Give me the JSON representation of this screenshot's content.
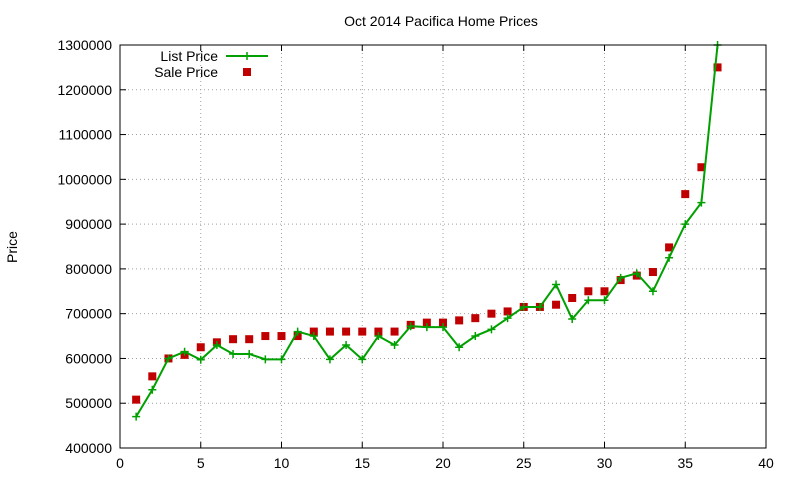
{
  "chart_data": {
    "type": "line",
    "title": "Oct 2014 Pacifica Home Prices",
    "xlabel": "",
    "ylabel": "Price",
    "xlim": [
      0,
      40
    ],
    "ylim": [
      400000,
      1300000
    ],
    "xticks": [
      0,
      5,
      10,
      15,
      20,
      25,
      30,
      35,
      40
    ],
    "yticks": [
      400000,
      500000,
      600000,
      700000,
      800000,
      900000,
      1000000,
      1100000,
      1200000,
      1300000
    ],
    "grid": true,
    "legend_position": "top-left",
    "series": [
      {
        "name": "List Price",
        "style": "line-with-plus-markers",
        "color": "#00a000",
        "x": [
          1,
          2,
          3,
          4,
          5,
          6,
          7,
          8,
          9,
          10,
          11,
          12,
          13,
          14,
          15,
          16,
          17,
          18,
          19,
          20,
          21,
          22,
          23,
          24,
          25,
          26,
          27,
          28,
          29,
          30,
          31,
          32,
          33,
          34,
          35,
          36,
          37
        ],
        "y": [
          470000,
          530000,
          600000,
          615000,
          597000,
          630000,
          610000,
          610000,
          598000,
          598000,
          660000,
          650000,
          598000,
          630000,
          598000,
          650000,
          630000,
          672000,
          670000,
          670000,
          625000,
          650000,
          665000,
          690000,
          715000,
          715000,
          765000,
          688000,
          730000,
          730000,
          780000,
          790000,
          750000,
          825000,
          900000,
          948000,
          1300000
        ]
      },
      {
        "name": "Sale Price",
        "style": "square-markers",
        "color": "#c00000",
        "x": [
          1,
          2,
          3,
          4,
          5,
          6,
          7,
          8,
          9,
          10,
          11,
          12,
          13,
          14,
          15,
          16,
          17,
          18,
          19,
          20,
          21,
          22,
          23,
          24,
          25,
          26,
          27,
          28,
          29,
          30,
          31,
          32,
          33,
          34,
          35,
          36,
          37
        ],
        "y": [
          508000,
          560000,
          600000,
          608000,
          625000,
          636000,
          643000,
          643000,
          650000,
          650000,
          650000,
          660000,
          660000,
          660000,
          660000,
          660000,
          660000,
          675000,
          680000,
          680000,
          685000,
          690000,
          700000,
          705000,
          715000,
          715000,
          720000,
          735000,
          750000,
          750000,
          775000,
          785000,
          793000,
          848000,
          967000,
          1027000,
          1250000
        ]
      }
    ]
  }
}
